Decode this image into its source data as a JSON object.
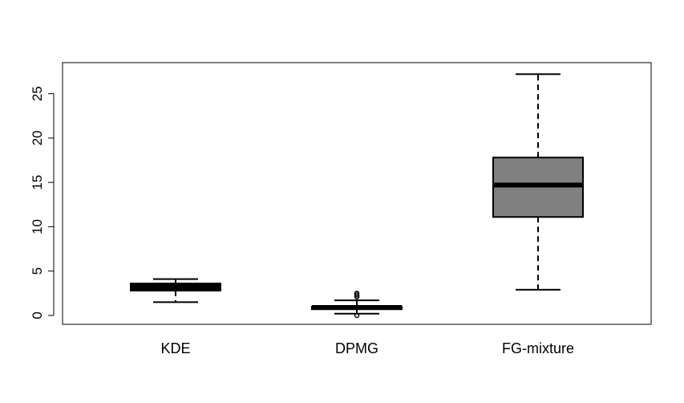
{
  "chart_data": {
    "type": "box",
    "categories": [
      "KDE",
      "DPMG",
      "FG-mixture"
    ],
    "boxes": [
      {
        "name": "KDE",
        "whisker_low": 1.5,
        "q1": 2.8,
        "median": 3.2,
        "q3": 3.6,
        "whisker_high": 4.1,
        "outliers": [],
        "fill": "#000000"
      },
      {
        "name": "DPMG",
        "whisker_low": 0.2,
        "q1": 0.7,
        "median": 0.9,
        "q3": 1.0,
        "whisker_high": 1.7,
        "outliers": [
          0.0,
          2.1,
          2.3,
          2.5
        ],
        "fill": "#000000"
      },
      {
        "name": "FG-mixture",
        "whisker_low": 2.9,
        "q1": 11.1,
        "median": 14.7,
        "q3": 17.8,
        "whisker_high": 27.2,
        "outliers": [],
        "fill": "#808080"
      }
    ],
    "yticks": [
      0,
      5,
      10,
      15,
      20,
      25
    ],
    "ylim": [
      -1.0,
      28.5
    ],
    "title": "",
    "xlabel": "",
    "ylabel": "",
    "grid": false
  }
}
